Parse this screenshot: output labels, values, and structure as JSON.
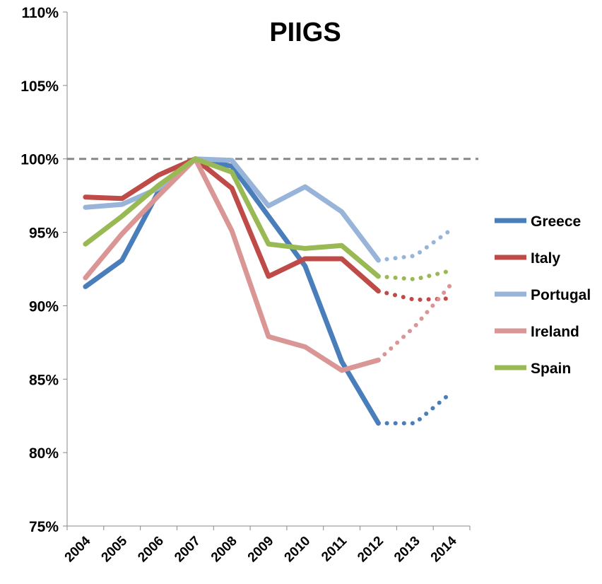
{
  "chart_data": {
    "type": "line",
    "title": "PIIGS",
    "categories": [
      "2004",
      "2005",
      "2006",
      "2007",
      "2008",
      "2009",
      "2010",
      "2011",
      "2012",
      "2013",
      "2014"
    ],
    "series": [
      {
        "name": "Greece",
        "color": "#4a7ebb",
        "values": [
          91.3,
          93.1,
          97.8,
          100,
          99.5,
          96.1,
          92.7,
          86.2,
          82.0,
          82.0,
          84.1
        ]
      },
      {
        "name": "Italy",
        "color": "#be4b48",
        "values": [
          97.4,
          97.3,
          98.9,
          100,
          98.0,
          92.0,
          93.2,
          93.2,
          91.0,
          90.4,
          90.5
        ]
      },
      {
        "name": "Portugal",
        "color": "#98b4d9",
        "values": [
          96.7,
          96.9,
          98.0,
          100,
          99.9,
          96.8,
          98.1,
          96.4,
          93.1,
          93.4,
          95.2
        ]
      },
      {
        "name": "Ireland",
        "color": "#d99694",
        "values": [
          91.9,
          94.9,
          97.5,
          100,
          95.1,
          87.9,
          87.2,
          85.6,
          86.3,
          88.6,
          91.5
        ]
      },
      {
        "name": "Spain",
        "color": "#98b954",
        "values": [
          94.2,
          96.1,
          98.2,
          100,
          99.1,
          94.2,
          93.9,
          94.1,
          92.0,
          91.8,
          92.4
        ]
      }
    ],
    "forecast_start": "2012",
    "reference_line": 100,
    "ylim": [
      75,
      110
    ],
    "yticks": [
      {
        "value": 75,
        "label": "75%"
      },
      {
        "value": 80,
        "label": "80%"
      },
      {
        "value": 85,
        "label": "85%"
      },
      {
        "value": 90,
        "label": "90%"
      },
      {
        "value": 95,
        "label": "95%"
      },
      {
        "value": 100,
        "label": "100%"
      },
      {
        "value": 105,
        "label": "105%"
      },
      {
        "value": 110,
        "label": "110%"
      }
    ],
    "legend": "right"
  }
}
